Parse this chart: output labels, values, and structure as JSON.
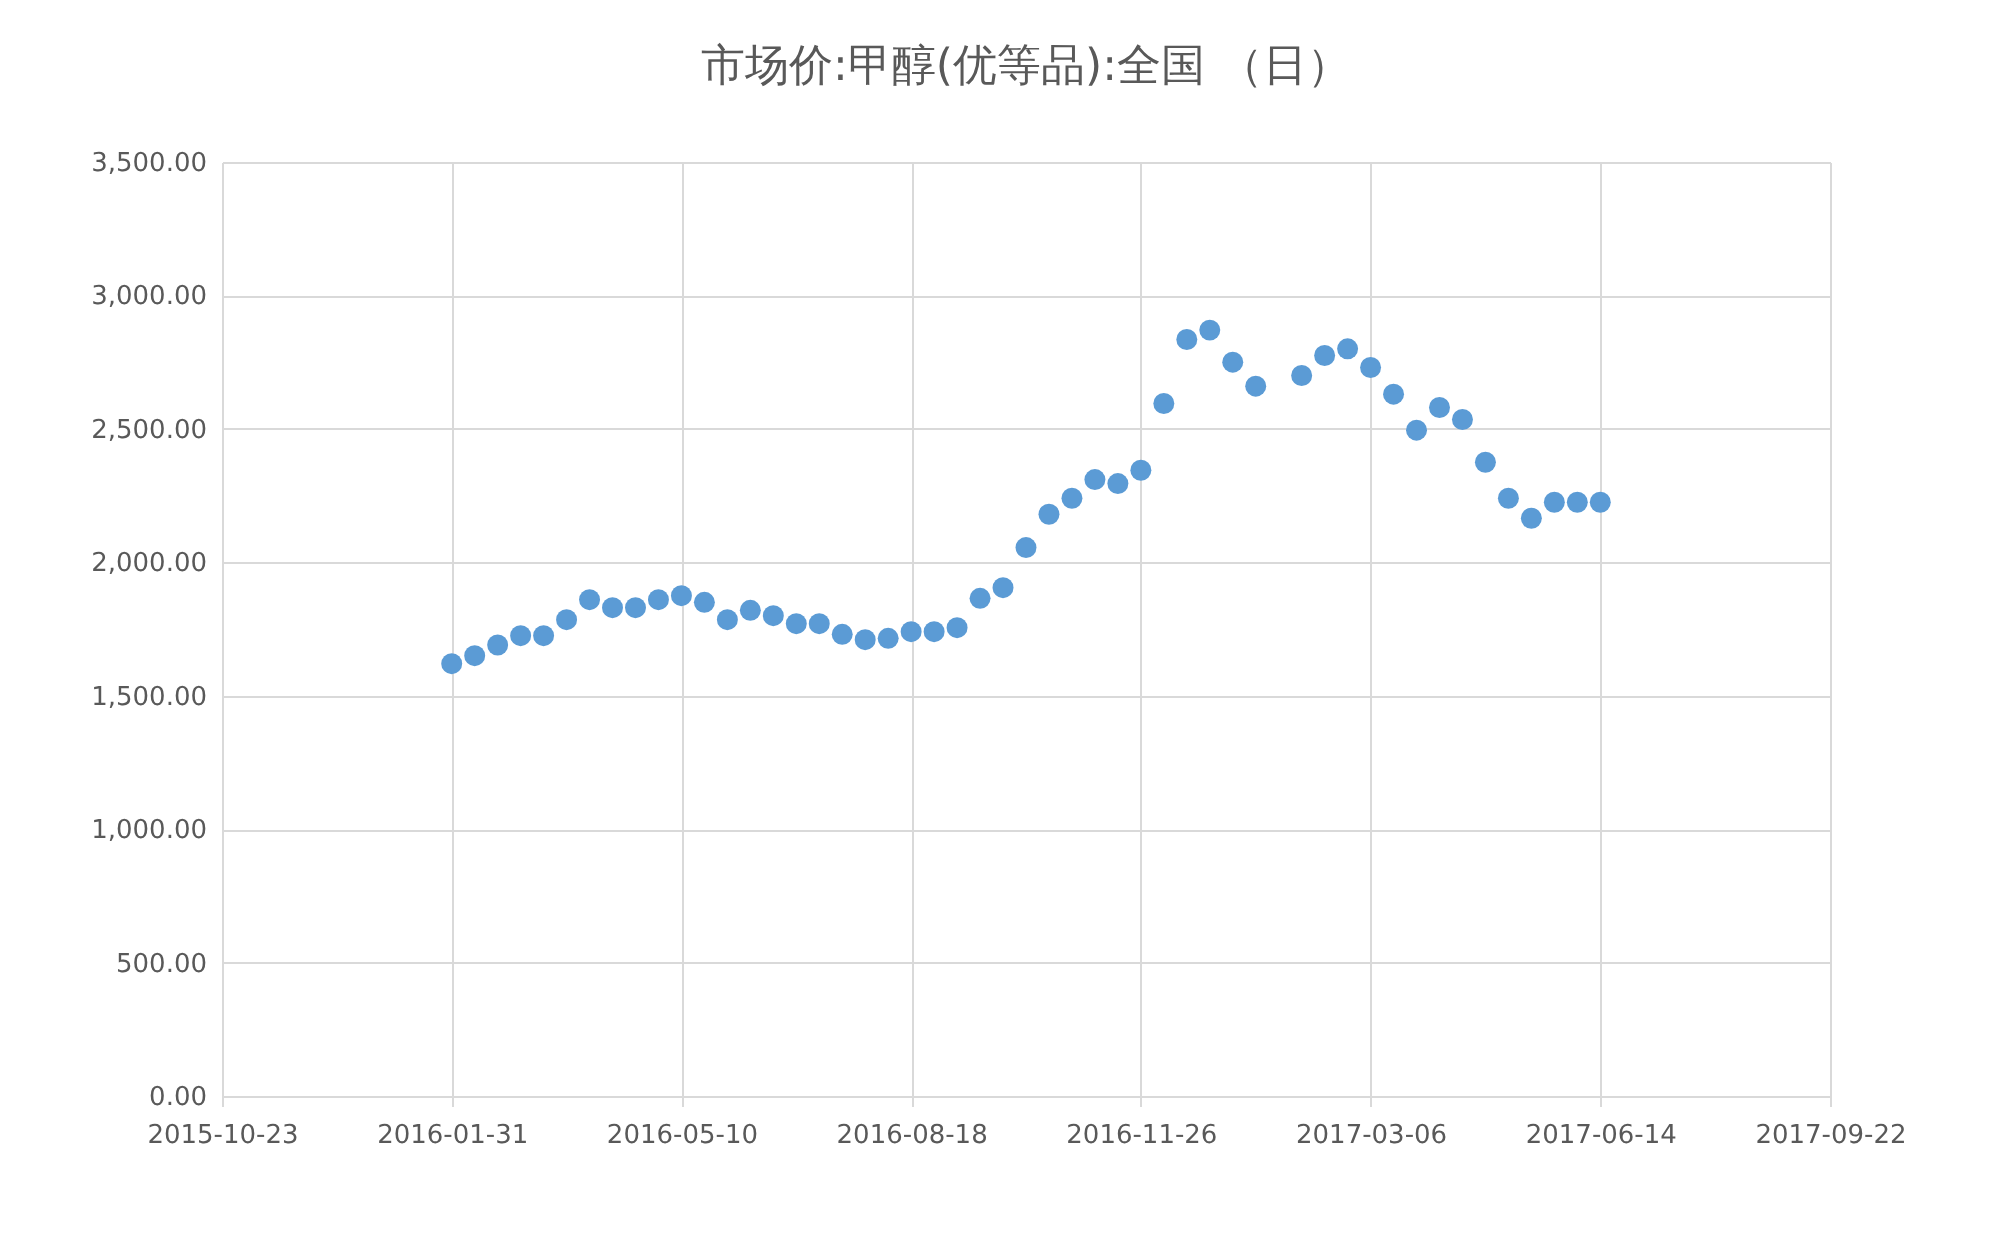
{
  "chart_data": {
    "type": "scatter",
    "title": "市场价:甲醇(优等品):全国 （日）",
    "x": [
      "2016-01-31",
      "2016-02-10",
      "2016-02-20",
      "2016-03-01",
      "2016-03-11",
      "2016-03-21",
      "2016-03-31",
      "2016-04-10",
      "2016-04-20",
      "2016-04-30",
      "2016-05-10",
      "2016-05-20",
      "2016-05-30",
      "2016-06-09",
      "2016-06-19",
      "2016-06-29",
      "2016-07-09",
      "2016-07-19",
      "2016-07-29",
      "2016-08-08",
      "2016-08-18",
      "2016-08-28",
      "2016-09-07",
      "2016-09-17",
      "2016-09-27",
      "2016-10-07",
      "2016-10-17",
      "2016-10-27",
      "2016-11-06",
      "2016-11-16",
      "2016-11-26",
      "2016-12-06",
      "2016-12-16",
      "2016-12-26",
      "2017-01-05",
      "2017-01-15",
      "2017-02-04",
      "2017-02-14",
      "2017-02-24",
      "2017-03-06",
      "2017-03-16",
      "2017-03-26",
      "2017-04-05",
      "2017-04-15",
      "2017-04-25",
      "2017-05-05",
      "2017-05-15",
      "2017-05-25",
      "2017-06-04",
      "2017-06-14"
    ],
    "series": [
      {
        "color": "#5b9bd5",
        "values": [
          1620,
          1650,
          1690,
          1725,
          1725,
          1785,
          1860,
          1830,
          1830,
          1860,
          1875,
          1850,
          1785,
          1820,
          1800,
          1770,
          1770,
          1730,
          1710,
          1715,
          1740,
          1740,
          1755,
          1865,
          1905,
          2055,
          2180,
          2240,
          2310,
          2295,
          2345,
          2595,
          2835,
          2870,
          2750,
          2660,
          2700,
          2775,
          2800,
          2730,
          2630,
          2495,
          2580,
          2535,
          2375,
          2240,
          2165,
          2225,
          2225,
          2225
        ]
      }
    ],
    "xlim": [
      "2015-10-23",
      "2017-09-22"
    ],
    "xticks": [
      "2015-10-23",
      "2016-01-31",
      "2016-05-10",
      "2016-08-18",
      "2016-11-26",
      "2017-03-06",
      "2017-06-14",
      "2017-09-22"
    ],
    "ylim": [
      0,
      3500
    ],
    "yticks": [
      {
        "value": 0,
        "label": "0.00"
      },
      {
        "value": 500,
        "label": "500.00"
      },
      {
        "value": 1000,
        "label": "1,000.00"
      },
      {
        "value": 1500,
        "label": "1,500.00"
      },
      {
        "value": 2000,
        "label": "2,000.00"
      },
      {
        "value": 2500,
        "label": "2,500.00"
      },
      {
        "value": 3000,
        "label": "3,000.00"
      },
      {
        "value": 3500,
        "label": "3,500.00"
      }
    ],
    "grid": true,
    "marker": "circle"
  }
}
